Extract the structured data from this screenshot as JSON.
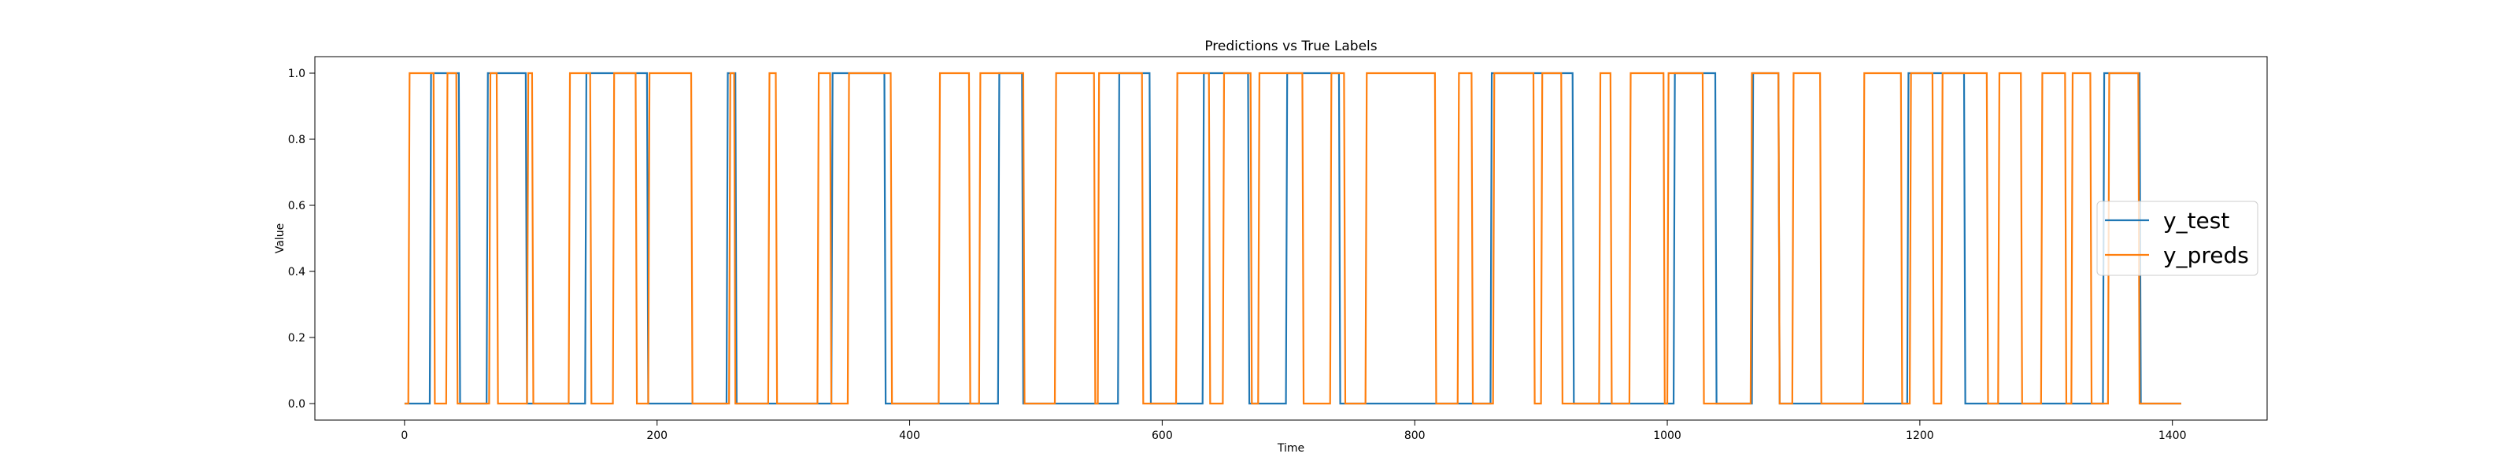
{
  "chart_data": {
    "type": "line",
    "title": "Predictions vs True Labels",
    "xlabel": "Time",
    "ylabel": "Value",
    "xlim": [
      -71,
      1475
    ],
    "ylim": [
      -0.05,
      1.05
    ],
    "x_ticks": [
      0,
      200,
      400,
      600,
      800,
      1000,
      1200,
      1400
    ],
    "y_ticks": [
      0.0,
      0.2,
      0.4,
      0.6,
      0.8,
      1.0
    ],
    "grid": false,
    "legend_position": "center-right",
    "series": [
      {
        "name": "y_test",
        "color": "#1f77b4",
        "start_value": 0,
        "end_x": 1407,
        "transitions": [
          20,
          43,
          65,
          96,
          143,
          192,
          255,
          262,
          338,
          380,
          470,
          489,
          565,
          590,
          632,
          668,
          698,
          740,
          860,
          925,
          1005,
          1038,
          1067,
          1088,
          1190,
          1235,
          1345,
          1374
        ]
      },
      {
        "name": "y_preds",
        "color": "#ff7f0e",
        "start_value": 0,
        "end_x": 1407,
        "transitions": [
          3,
          23,
          33,
          41,
          67,
          73,
          97,
          101,
          130,
          147,
          165,
          183,
          193,
          227,
          257,
          261,
          288,
          294,
          327,
          337,
          351,
          385,
          423,
          447,
          455,
          490,
          515,
          546,
          549,
          584,
          611,
          637,
          648,
          670,
          676,
          711,
          733,
          744,
          761,
          816,
          834,
          845,
          862,
          894,
          900,
          916,
          946,
          955,
          970,
          997,
          1000,
          1028,
          1066,
          1088,
          1099,
          1121,
          1155,
          1185,
          1192,
          1210,
          1217,
          1253,
          1262,
          1280,
          1296,
          1315,
          1320,
          1335,
          1349,
          1373
        ]
      }
    ]
  }
}
